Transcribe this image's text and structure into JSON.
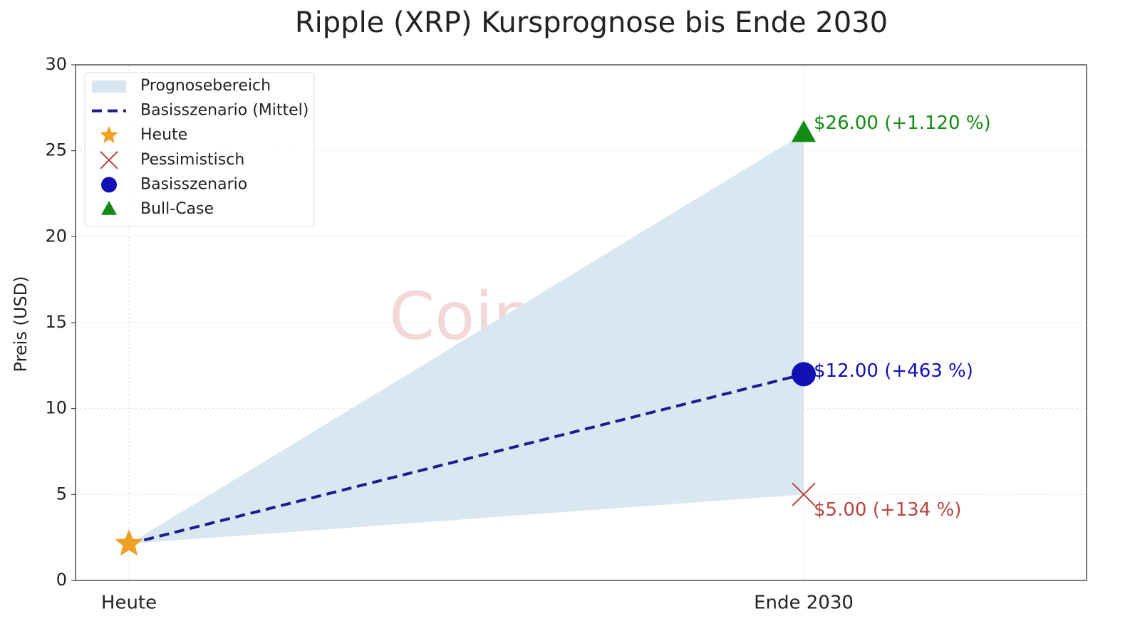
{
  "chart_data": {
    "type": "line",
    "title": "Ripple (XRP) Kursprognose bis Ende 2030",
    "ylabel": "Preis (USD)",
    "watermark": "Coinspeaker",
    "categories": [
      "Heute",
      "Ende 2030"
    ],
    "ylim": [
      0,
      30
    ],
    "yticks": [
      0,
      5,
      10,
      15,
      20,
      25,
      30
    ],
    "grid": true,
    "legend": "upper left",
    "series": [
      {
        "name": "Prognosebereich",
        "type": "area",
        "color": "#d7e6f0",
        "values": [
          2.13,
          26
        ],
        "lower": [
          2.13,
          5
        ]
      },
      {
        "name": "Basisszenario (Mittel)",
        "type": "line",
        "color": "#1c1c8f",
        "dashed": true,
        "values": [
          2.13,
          12
        ]
      },
      {
        "name": "Heute",
        "type": "marker",
        "marker": "star",
        "color": "#f0a024",
        "values": [
          2.13,
          null
        ]
      },
      {
        "name": "Pessimistisch",
        "type": "marker",
        "marker": "x",
        "color": "#b8453f",
        "values": [
          null,
          5
        ],
        "value_labels": [
          null,
          "$5.00 (+134 %)"
        ]
      },
      {
        "name": "Basisszenario",
        "type": "marker",
        "marker": "circle",
        "color": "#1010b4",
        "values": [
          null,
          12
        ],
        "value_labels": [
          null,
          "$12.00 (+463 %)"
        ]
      },
      {
        "name": "Bull-Case",
        "type": "marker",
        "marker": "triangle",
        "color": "#138a13",
        "values": [
          null,
          26
        ],
        "value_labels": [
          null,
          "$26.00 (+1.120 %)"
        ]
      }
    ]
  }
}
